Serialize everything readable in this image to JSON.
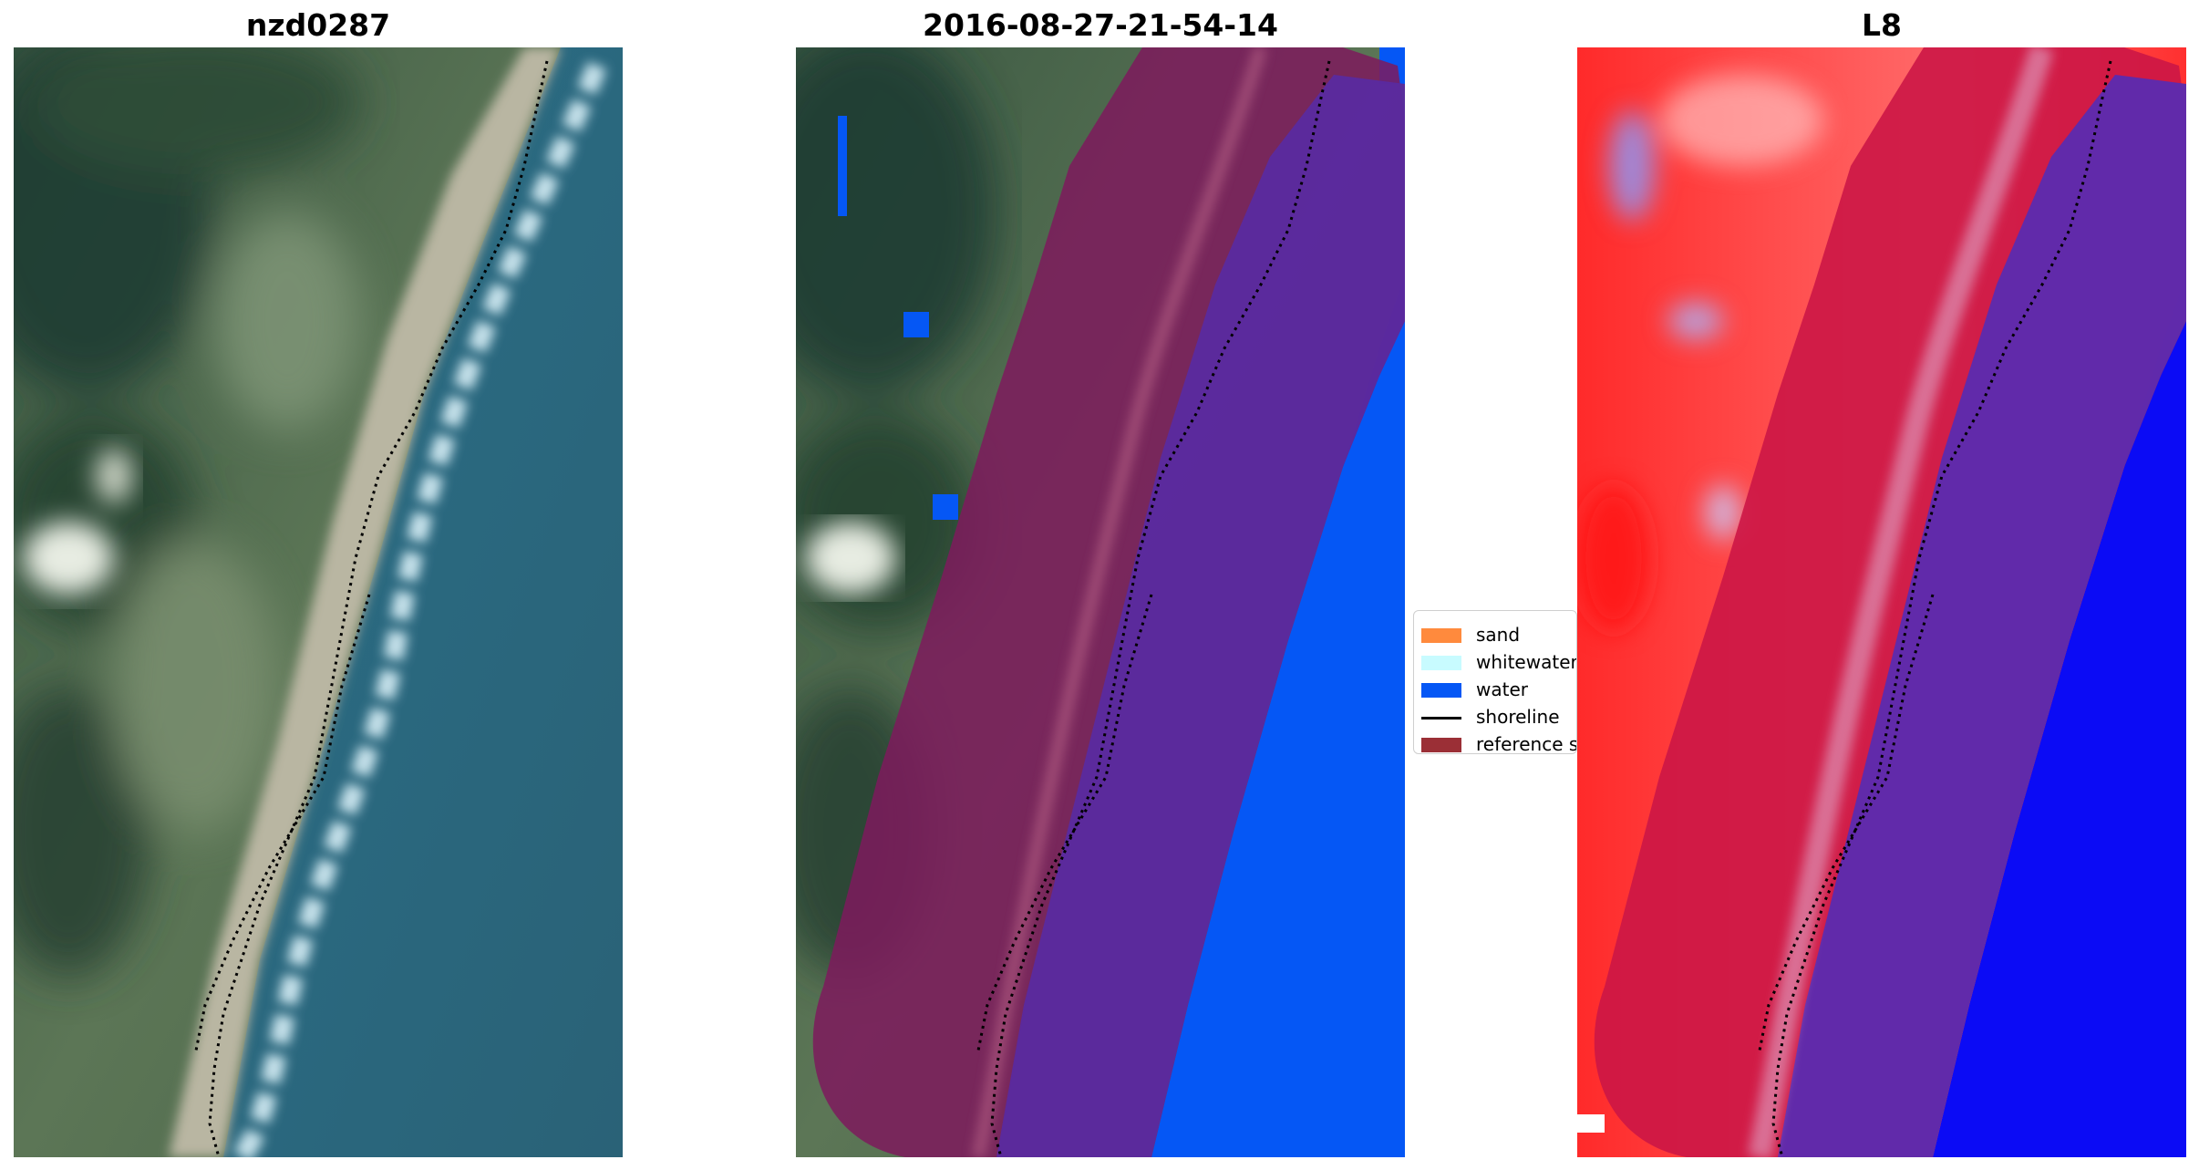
{
  "panels": [
    {
      "title": "nzd0287",
      "kind": "rgb"
    },
    {
      "title": "2016-08-27-21-54-14",
      "kind": "classified"
    },
    {
      "title": "L8",
      "kind": "index"
    }
  ],
  "legend": {
    "items": [
      {
        "label": "sand",
        "color": "#ff8a3d",
        "kind": "patch"
      },
      {
        "label": "whitewater",
        "color": "#c8fbff",
        "kind": "patch"
      },
      {
        "label": "water",
        "color": "#0557f5",
        "kind": "patch"
      },
      {
        "label": "shoreline",
        "color": "#000000",
        "kind": "line"
      },
      {
        "label": "reference s",
        "color": "#9b2f36",
        "kind": "patch"
      }
    ]
  },
  "colors": {
    "land_dark": "#2f4d3a",
    "land_light": "#6d8463",
    "sand": "#c9c4b0",
    "ocean": "#2f6f86",
    "surf": "#cfe9f2",
    "reference_buffer": "#8b1e55",
    "water_class": "#0557f5",
    "index_red": "#ff2020",
    "index_blue": "#0b0bf5",
    "index_purple": "#5a2aa0"
  }
}
